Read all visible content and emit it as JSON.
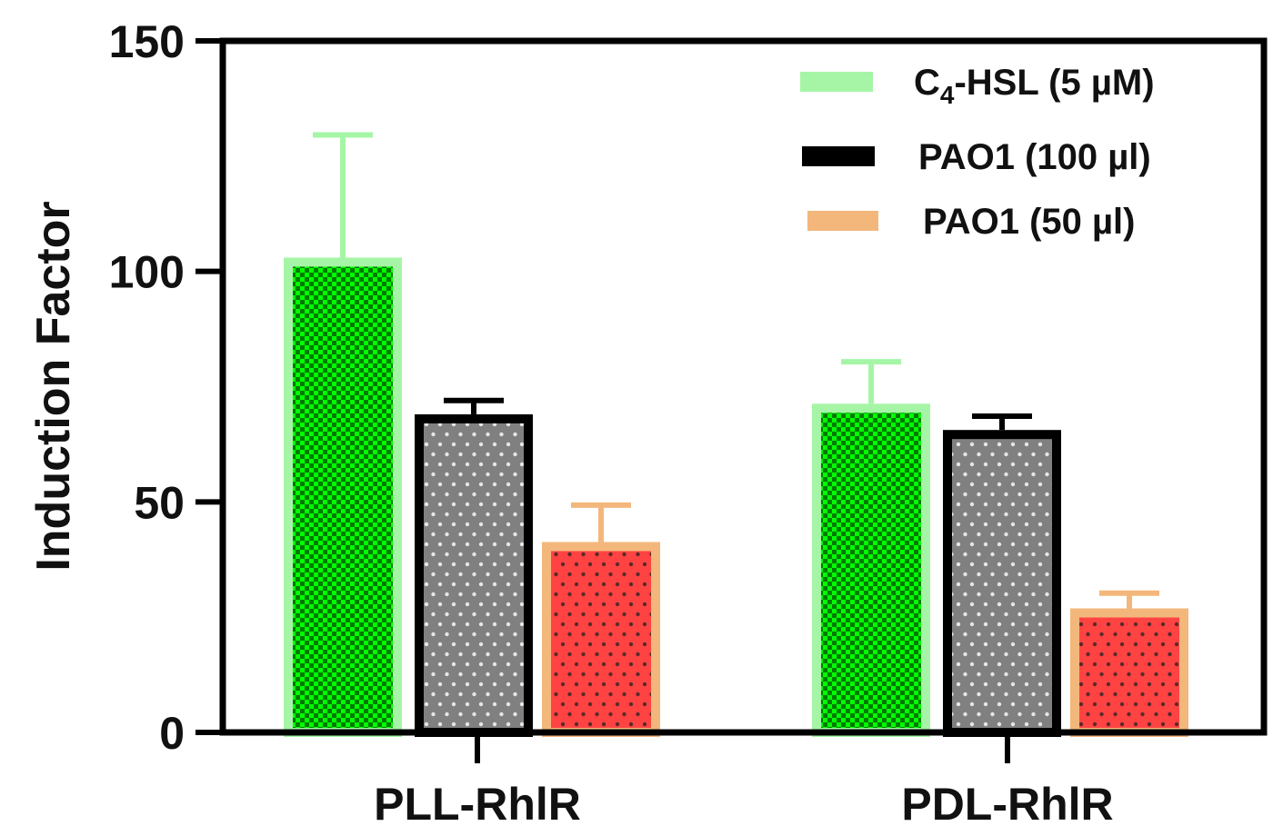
{
  "chart_data": {
    "type": "bar",
    "title": "",
    "xlabel": "",
    "ylabel": "Induction Factor",
    "ylim": [
      0,
      150
    ],
    "yticks": [
      0,
      50,
      100,
      150
    ],
    "grid": false,
    "legend_position": "top-right (inside)",
    "categories": [
      "PLL-RhlR",
      "PDL-RhlR"
    ],
    "series": [
      {
        "name": "C4-HSL (5 µM)",
        "name_parts": {
          "pre": "C",
          "sub": "4",
          "post": "-HSL (5 µM)"
        },
        "values": [
          103,
          71.3
        ],
        "errors": [
          26.6,
          9.1
        ],
        "edge_color": "#A6F5A6",
        "fill_colors": [
          "#00FF00",
          "#007A00"
        ],
        "pattern": "checker"
      },
      {
        "name": "PAO1 (100 µl)",
        "values": [
          69,
          65.6
        ],
        "errors": [
          3,
          3
        ],
        "edge_color": "#000000",
        "fill_colors": [
          "#808080",
          "#E6E6E6"
        ],
        "pattern": "dots"
      },
      {
        "name": "PAO1 (50 µl)",
        "values": [
          41.3,
          26.9
        ],
        "errors": [
          8,
          3.3
        ],
        "edge_color": "#F3B77C",
        "fill_colors": [
          "#FF4343",
          "#5A2A2A"
        ],
        "pattern": "dots"
      }
    ]
  }
}
